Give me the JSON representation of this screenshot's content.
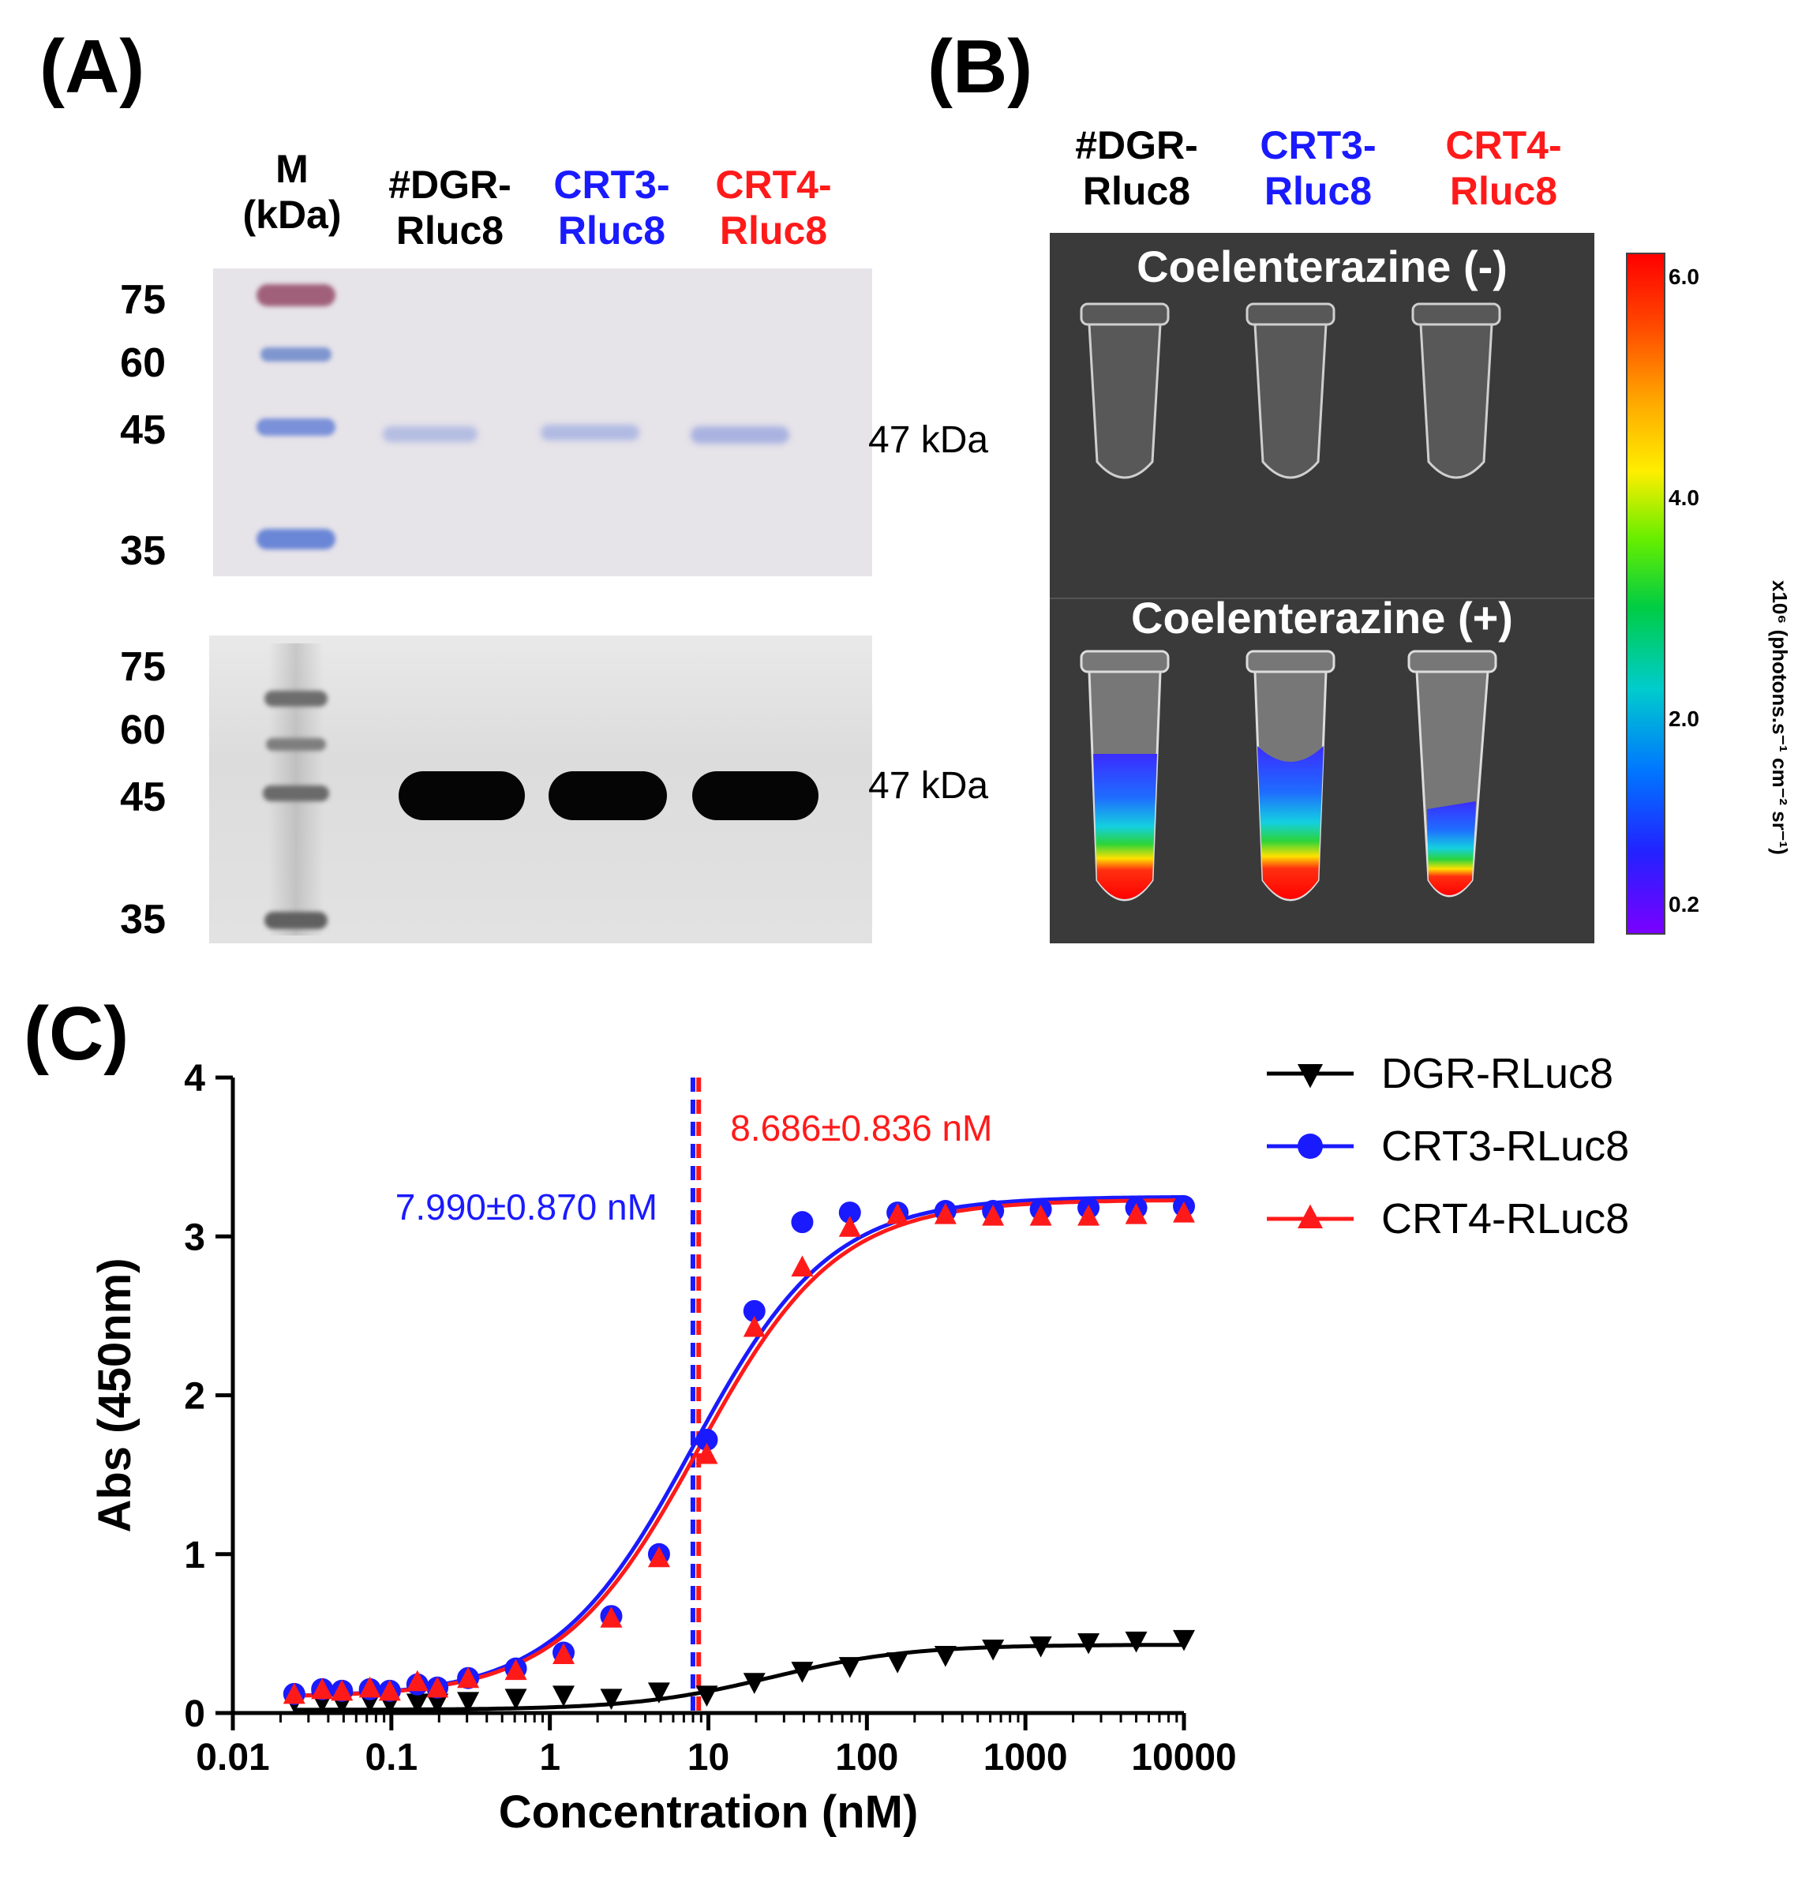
{
  "panelA": {
    "letter": "(A)",
    "lanes": {
      "marker_line1": "M",
      "marker_line2": "(kDa)",
      "dgr_line1": "#DGR-",
      "dgr_line2": "Rluc8",
      "crt3_line1": "CRT3-",
      "crt3_line2": "Rluc8",
      "crt4_line1": "CRT4-",
      "crt4_line2": "Rluc8"
    },
    "markers_top": [
      "75",
      "60",
      "45",
      "35"
    ],
    "markers_bottom": [
      "75",
      "60",
      "45",
      "35"
    ],
    "band_label_top": "47 kDa",
    "band_label_bottom": "47 kDa"
  },
  "panelB": {
    "letter": "(B)",
    "lanes": {
      "dgr_line1": "#DGR-",
      "dgr_line2": "Rluc8",
      "crt3_line1": "CRT3-",
      "crt3_line2": "Rluc8",
      "crt4_line1": "CRT4-",
      "crt4_line2": "Rluc8"
    },
    "top_caption": "Coelenterazine (-)",
    "bottom_caption": "Coelenterazine (+)",
    "colorbar": {
      "ticks": [
        "6.0",
        "4.0",
        "2.0",
        "0.2"
      ],
      "tick_values": [
        6.0,
        4.0,
        2.0,
        0.2
      ],
      "range": [
        0.0,
        6.2
      ],
      "label": "x10⁶ (photons.s⁻¹ cm⁻² sr⁻¹)"
    }
  },
  "colors": {
    "black": "#000000",
    "blue": "#1a1aff",
    "red": "#ff1a1a"
  },
  "chart_data": {
    "letter": "(C)",
    "type": "scatter",
    "xscale": "log",
    "xlim": [
      0.01,
      10000
    ],
    "ylim": [
      0,
      4
    ],
    "xticks": [
      0.01,
      0.1,
      1,
      10,
      100,
      1000,
      10000
    ],
    "xtick_labels": [
      "0.01",
      "0.1",
      "1",
      "10",
      "100",
      "1000",
      "10000"
    ],
    "yticks": [
      0,
      1,
      2,
      3,
      4
    ],
    "ytick_labels": [
      "0",
      "1",
      "2",
      "3",
      "4"
    ],
    "xlabel": "Concentration (nM)",
    "ylabel": "Abs (450nm)",
    "x": [
      0.0244,
      0.0366,
      0.0488,
      0.0732,
      0.0977,
      0.146,
      0.195,
      0.305,
      0.61,
      1.22,
      2.44,
      4.88,
      9.77,
      19.5,
      39.1,
      78.1,
      156,
      313,
      625,
      1250,
      2500,
      5000,
      10000
    ],
    "series": [
      {
        "name": "DGR-RLuc8",
        "marker": "triangle-down",
        "color": "#000000",
        "values": [
          0.08,
          0.08,
          0.07,
          0.08,
          0.07,
          0.07,
          0.07,
          0.08,
          0.1,
          0.12,
          0.1,
          0.14,
          0.12,
          0.2,
          0.27,
          0.3,
          0.33,
          0.37,
          0.41,
          0.43,
          0.45,
          0.46,
          0.47
        ],
        "fit": {
          "bottom": 0.02,
          "top": 0.43,
          "ec50": 25,
          "hill": 1
        }
      },
      {
        "name": "CRT3-RLuc8",
        "marker": "circle",
        "color": "#1a1aff",
        "values": [
          0.12,
          0.15,
          0.14,
          0.15,
          0.14,
          0.18,
          0.16,
          0.22,
          0.28,
          0.38,
          0.61,
          1.0,
          1.72,
          2.53,
          3.09,
          3.15,
          3.15,
          3.16,
          3.16,
          3.17,
          3.18,
          3.18,
          3.19
        ],
        "fit": {
          "bottom": 0.1,
          "top": 3.25,
          "ec50": 7.99,
          "hill": 1
        }
      },
      {
        "name": "CRT4-RLuc8",
        "marker": "triangle-up",
        "color": "#ff1a1a",
        "values": [
          0.11,
          0.14,
          0.13,
          0.15,
          0.13,
          0.19,
          0.15,
          0.21,
          0.26,
          0.36,
          0.59,
          0.97,
          1.62,
          2.42,
          2.8,
          3.05,
          3.13,
          3.13,
          3.12,
          3.12,
          3.12,
          3.13,
          3.14
        ],
        "fit": {
          "bottom": 0.1,
          "top": 3.23,
          "ec50": 8.686,
          "hill": 1
        }
      }
    ],
    "vlines": [
      {
        "x": 7.99,
        "color": "#1a1aff",
        "label": "7.990±0.870 nM",
        "label_side": "left"
      },
      {
        "x": 8.686,
        "color": "#ff1a1a",
        "label": "8.686±0.836 nM",
        "label_side": "right"
      }
    ],
    "legend_position": "top-right"
  }
}
